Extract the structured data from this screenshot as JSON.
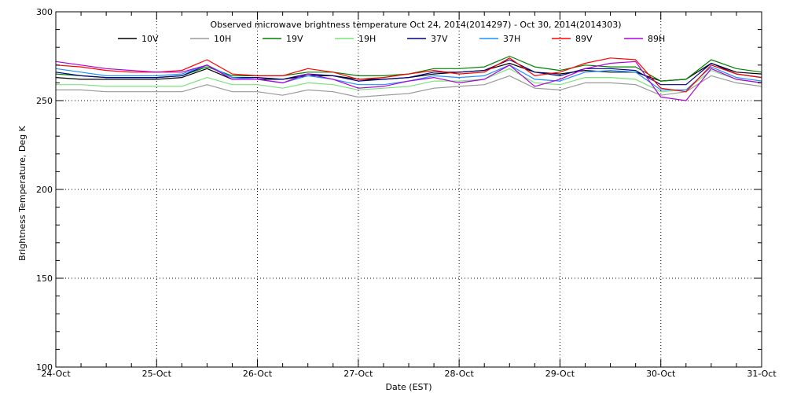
{
  "chart_data": {
    "type": "line",
    "title": "Observed microwave brightness temperature Oct 24, 2014(2014297) - Oct 30, 2014(2014303)",
    "xlabel": "Date (EST)",
    "ylabel": "Brightness Temperature, Deg K",
    "ylim": [
      100,
      300
    ],
    "xlim": [
      0,
      7
    ],
    "x_tick_labels": [
      "24-Oct",
      "25-Oct",
      "26-Oct",
      "27-Oct",
      "28-Oct",
      "29-Oct",
      "30-Oct",
      "31-Oct"
    ],
    "y_ticks": [
      100,
      150,
      200,
      250,
      300
    ],
    "grid": true,
    "legend_position": "top",
    "x": [
      0.0,
      0.25,
      0.5,
      0.75,
      1.0,
      1.25,
      1.5,
      1.75,
      2.0,
      2.25,
      2.5,
      2.75,
      3.0,
      3.25,
      3.5,
      3.75,
      4.0,
      4.25,
      4.5,
      4.75,
      5.0,
      5.25,
      5.5,
      5.75,
      6.0,
      6.25,
      6.5,
      6.75,
      7.0
    ],
    "series": [
      {
        "name": "10V",
        "color": "#000000",
        "values": [
          263,
          262,
          262,
          262,
          262,
          263,
          268,
          262,
          262,
          262,
          264,
          264,
          262,
          262,
          263,
          265,
          266,
          267,
          271,
          266,
          265,
          267,
          266,
          266,
          261,
          262,
          271,
          266,
          265
        ]
      },
      {
        "name": "10H",
        "color": "#999999",
        "values": [
          256,
          256,
          255,
          255,
          255,
          255,
          259,
          255,
          255,
          253,
          256,
          255,
          252,
          253,
          254,
          257,
          258,
          259,
          264,
          257,
          256,
          260,
          260,
          259,
          253,
          255,
          264,
          260,
          258
        ]
      },
      {
        "name": "19V",
        "color": "#008000",
        "values": [
          265,
          264,
          263,
          263,
          263,
          264,
          269,
          264,
          264,
          264,
          266,
          266,
          264,
          264,
          265,
          268,
          268,
          269,
          275,
          269,
          267,
          270,
          269,
          269,
          261,
          262,
          273,
          268,
          266
        ]
      },
      {
        "name": "19H",
        "color": "#7CE37C",
        "values": [
          259,
          259,
          258,
          258,
          258,
          258,
          263,
          259,
          259,
          257,
          260,
          259,
          256,
          257,
          258,
          261,
          261,
          262,
          268,
          260,
          259,
          263,
          263,
          262,
          255,
          256,
          267,
          262,
          260
        ]
      },
      {
        "name": "37V",
        "color": "#000080",
        "values": [
          266,
          264,
          263,
          263,
          263,
          264,
          270,
          263,
          263,
          262,
          265,
          264,
          261,
          262,
          263,
          266,
          266,
          267,
          273,
          266,
          264,
          268,
          268,
          267,
          259,
          259,
          271,
          265,
          263
        ]
      },
      {
        "name": "37H",
        "color": "#1E90FF",
        "values": [
          268,
          266,
          264,
          264,
          264,
          265,
          270,
          263,
          262,
          260,
          264,
          262,
          259,
          259,
          261,
          264,
          263,
          264,
          270,
          262,
          261,
          266,
          267,
          266,
          256,
          256,
          269,
          263,
          261
        ]
      },
      {
        "name": "89V",
        "color": "#FF0000",
        "values": [
          270,
          269,
          267,
          266,
          266,
          267,
          273,
          265,
          264,
          264,
          268,
          266,
          262,
          263,
          265,
          267,
          265,
          266,
          274,
          264,
          266,
          271,
          274,
          273,
          257,
          255,
          270,
          265,
          263
        ]
      },
      {
        "name": "89H",
        "color": "#B000D8",
        "values": [
          272,
          270,
          268,
          267,
          266,
          266,
          270,
          262,
          262,
          260,
          265,
          262,
          257,
          258,
          261,
          263,
          260,
          262,
          270,
          258,
          262,
          268,
          271,
          272,
          252,
          250,
          268,
          262,
          260
        ]
      }
    ]
  }
}
